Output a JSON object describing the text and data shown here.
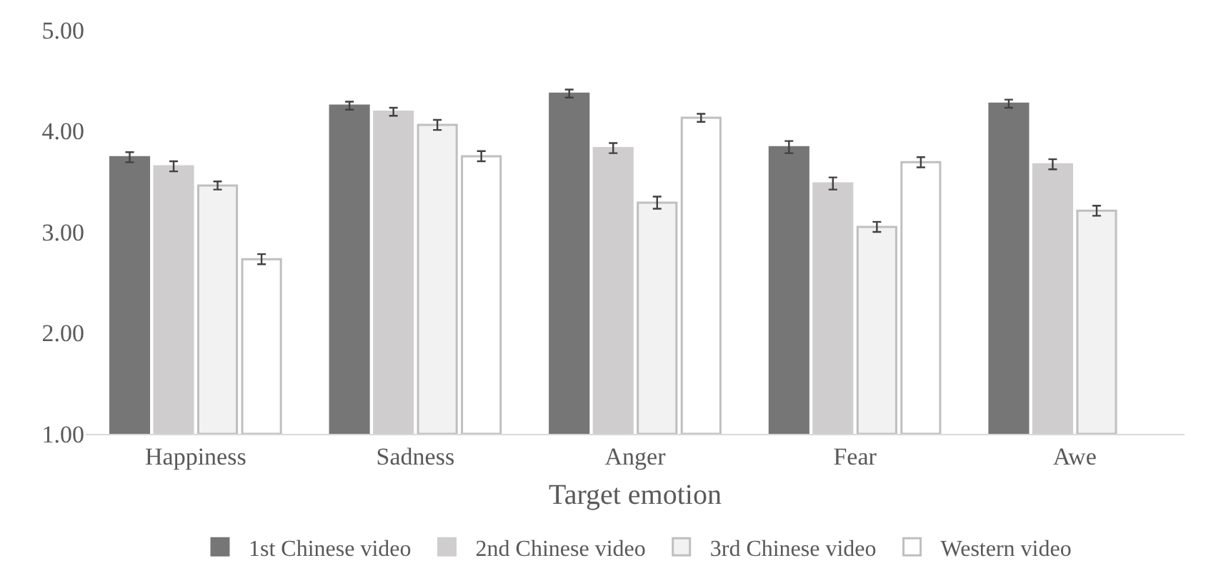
{
  "chart_data": {
    "type": "bar",
    "xlabel": "Target emotion",
    "categories": [
      "Happiness",
      "Sadness",
      "Anger",
      "Fear",
      "Awe"
    ],
    "series": [
      {
        "name": "1st Chinese video",
        "color": "#767676",
        "values": [
          3.74,
          4.25,
          4.37,
          3.84,
          4.27
        ],
        "errors": [
          0.05,
          0.04,
          0.04,
          0.06,
          0.04
        ]
      },
      {
        "name": "2nd Chinese video",
        "color": "#cfcdcd",
        "values": [
          3.65,
          4.19,
          3.83,
          3.48,
          3.67
        ],
        "errors": [
          0.05,
          0.04,
          0.05,
          0.06,
          0.05
        ]
      },
      {
        "name": "3rd Chinese video",
        "color": "#f2f2f2",
        "values": [
          3.46,
          4.06,
          3.29,
          3.05,
          3.21
        ],
        "errors": [
          0.04,
          0.05,
          0.06,
          0.05,
          0.05
        ]
      },
      {
        "name": "Western video",
        "color": "#ffffff",
        "values": [
          2.73,
          3.75,
          4.13,
          3.69,
          null
        ],
        "errors": [
          0.05,
          0.05,
          0.04,
          0.05,
          null
        ]
      }
    ],
    "ylim": [
      1,
      5
    ],
    "yticks": [
      {
        "value": 1,
        "label": "1.00"
      },
      {
        "value": 2,
        "label": "2.00"
      },
      {
        "value": 3,
        "label": "3.00"
      },
      {
        "value": 4,
        "label": "4.00"
      },
      {
        "value": 5,
        "label": "5.00"
      }
    ],
    "grid": false,
    "legend": "bottom"
  }
}
